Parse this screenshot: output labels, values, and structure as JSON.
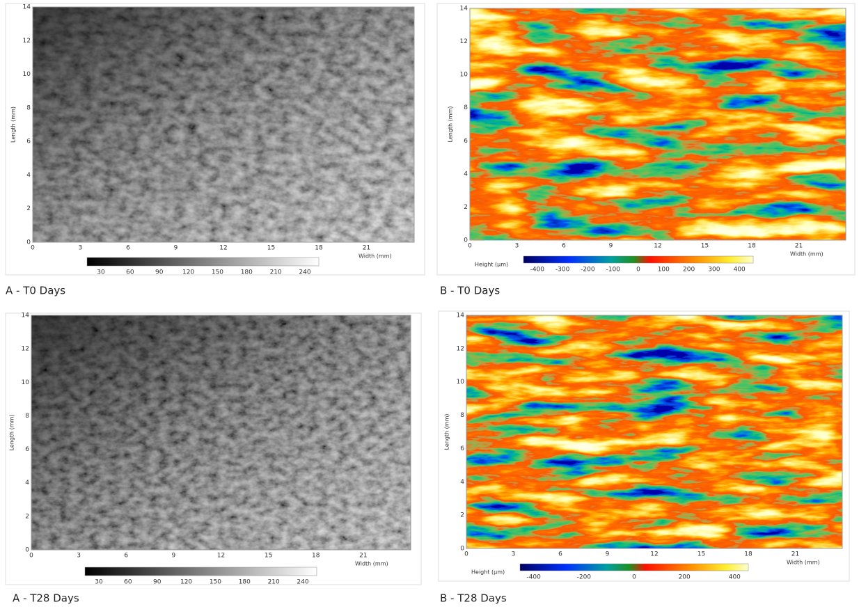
{
  "panels": [
    {
      "caption": "A - T0 Days",
      "x_label": "Width (mm)",
      "y_label": "Length (mm)",
      "x_ticks": [
        "0",
        "3",
        "6",
        "9",
        "12",
        "15",
        "18",
        "21"
      ],
      "y_ticks": [
        "0",
        "2",
        "4",
        "6",
        "8",
        "10",
        "12",
        "14"
      ],
      "colorbar_ticks": [
        "30",
        "60",
        "90",
        "120",
        "150",
        "180",
        "210",
        "240"
      ]
    },
    {
      "caption": "B - T0 Days",
      "x_label": "Width (mm)",
      "y_label": "Length (mm)",
      "x_ticks": [
        "0",
        "3",
        "6",
        "9",
        "12",
        "15",
        "18",
        "21"
      ],
      "y_ticks": [
        "0",
        "2",
        "4",
        "6",
        "8",
        "10",
        "12",
        "14"
      ],
      "colorbar_label": "Height (µm)",
      "colorbar_ticks": [
        "-400",
        "-300",
        "-200",
        "-100",
        "0",
        "100",
        "200",
        "300",
        "400"
      ]
    },
    {
      "caption": "A - T28 Days",
      "x_label": "Width (mm)",
      "y_label": "Length (mm)",
      "x_ticks": [
        "0",
        "3",
        "6",
        "9",
        "12",
        "15",
        "18",
        "21"
      ],
      "y_ticks": [
        "0",
        "2",
        "4",
        "6",
        "8",
        "10",
        "12",
        "14"
      ],
      "colorbar_ticks": [
        "30",
        "60",
        "90",
        "120",
        "150",
        "180",
        "210",
        "240"
      ]
    },
    {
      "caption": "B - T28 Days",
      "x_label": "Width (mm)",
      "y_label": "Length (mm)",
      "x_ticks": [
        "0",
        "3",
        "6",
        "9",
        "12",
        "15",
        "18",
        "21"
      ],
      "y_ticks": [
        "0",
        "2",
        "4",
        "6",
        "8",
        "10",
        "12",
        "14"
      ],
      "colorbar_label": "Height (µm)",
      "colorbar_ticks": [
        "-400",
        "-200",
        "0",
        "200",
        "400"
      ]
    }
  ]
}
